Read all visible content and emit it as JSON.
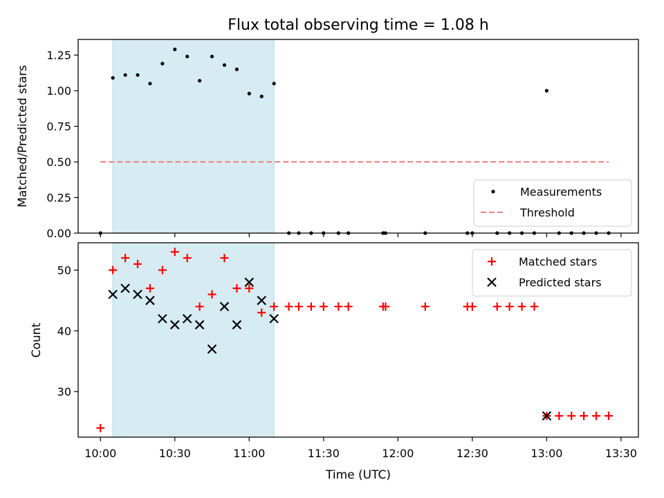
{
  "chart_data": [
    {
      "type": "scatter",
      "title": "Flux total observing time = 1.08 h",
      "xlabel": "",
      "ylabel": "Matched/Predicted stars",
      "xlim": [
        "09:51",
        "13:37"
      ],
      "ylim": [
        0,
        1.36
      ],
      "yticks": [
        0.0,
        0.25,
        0.5,
        0.75,
        1.0,
        1.25
      ],
      "ytick_labels": [
        "0.00",
        "0.25",
        "0.50",
        "0.75",
        "1.00",
        "1.25"
      ],
      "xticks": [
        "10:00",
        "10:30",
        "11:00",
        "11:30",
        "12:00",
        "12:30",
        "13:00",
        "13:30"
      ],
      "show_xtick_labels": false,
      "grid": false,
      "legend_position": "bottom-right",
      "shaded_region": {
        "x": [
          "10:05",
          "11:10"
        ],
        "color": "#add8e6"
      },
      "series": [
        {
          "name": "Measurements",
          "marker": "dot",
          "color": "#000000",
          "points": [
            [
              "10:00",
              0.0
            ],
            [
              "10:05",
              1.09
            ],
            [
              "10:10",
              1.11
            ],
            [
              "10:15",
              1.11
            ],
            [
              "10:20",
              1.05
            ],
            [
              "10:25",
              1.19
            ],
            [
              "10:30",
              1.29
            ],
            [
              "10:35",
              1.24
            ],
            [
              "10:40",
              1.07
            ],
            [
              "10:45",
              1.24
            ],
            [
              "10:50",
              1.18
            ],
            [
              "10:55",
              1.15
            ],
            [
              "11:00",
              0.98
            ],
            [
              "11:05",
              0.96
            ],
            [
              "11:10",
              1.05
            ],
            [
              "11:16",
              0.0
            ],
            [
              "11:20",
              0.0
            ],
            [
              "11:25",
              0.0
            ],
            [
              "11:30",
              0.0
            ],
            [
              "11:36",
              0.0
            ],
            [
              "11:40",
              0.0
            ],
            [
              "11:54",
              0.0
            ],
            [
              "11:55",
              0.0
            ],
            [
              "12:11",
              0.0
            ],
            [
              "12:28",
              0.0
            ],
            [
              "12:30",
              0.0
            ],
            [
              "12:40",
              0.0
            ],
            [
              "12:45",
              0.0
            ],
            [
              "12:50",
              0.0
            ],
            [
              "12:55",
              0.0
            ],
            [
              "13:00",
              1.0
            ],
            [
              "13:05",
              0.0
            ],
            [
              "13:10",
              0.0
            ],
            [
              "13:15",
              0.0
            ],
            [
              "13:20",
              0.0
            ],
            [
              "13:25",
              0.0
            ]
          ]
        },
        {
          "name": "Threshold",
          "marker": "dashed-line",
          "color": "#f08080",
          "points": [
            [
              "10:00",
              0.5
            ],
            [
              "13:25",
              0.5
            ]
          ]
        }
      ]
    },
    {
      "type": "scatter",
      "title": "",
      "xlabel": "Time (UTC)",
      "ylabel": "Count",
      "xlim": [
        "09:51",
        "13:37"
      ],
      "ylim": [
        22.5,
        54.5
      ],
      "yticks": [
        30,
        40,
        50
      ],
      "ytick_labels": [
        "30",
        "40",
        "50"
      ],
      "xticks": [
        "10:00",
        "10:30",
        "11:00",
        "11:30",
        "12:00",
        "12:30",
        "13:00",
        "13:30"
      ],
      "show_xtick_labels": true,
      "grid": false,
      "legend_position": "top-right",
      "shaded_region": {
        "x": [
          "10:05",
          "11:10"
        ],
        "color": "#add8e6"
      },
      "series": [
        {
          "name": "Matched stars",
          "marker": "plus",
          "color": "#ff0000",
          "points": [
            [
              "10:00",
              24
            ],
            [
              "10:05",
              50
            ],
            [
              "10:10",
              52
            ],
            [
              "10:15",
              51
            ],
            [
              "10:20",
              47
            ],
            [
              "10:25",
              50
            ],
            [
              "10:30",
              53
            ],
            [
              "10:35",
              52
            ],
            [
              "10:40",
              44
            ],
            [
              "10:45",
              46
            ],
            [
              "10:50",
              52
            ],
            [
              "10:55",
              47
            ],
            [
              "11:00",
              47
            ],
            [
              "11:05",
              43
            ],
            [
              "11:10",
              44
            ],
            [
              "11:16",
              44
            ],
            [
              "11:20",
              44
            ],
            [
              "11:25",
              44
            ],
            [
              "11:30",
              44
            ],
            [
              "11:36",
              44
            ],
            [
              "11:40",
              44
            ],
            [
              "11:54",
              44
            ],
            [
              "11:55",
              44
            ],
            [
              "12:11",
              44
            ],
            [
              "12:28",
              44
            ],
            [
              "12:30",
              44
            ],
            [
              "12:40",
              44
            ],
            [
              "12:45",
              44
            ],
            [
              "12:50",
              44
            ],
            [
              "12:55",
              44
            ],
            [
              "13:00",
              26
            ],
            [
              "13:05",
              26
            ],
            [
              "13:10",
              26
            ],
            [
              "13:15",
              26
            ],
            [
              "13:20",
              26
            ],
            [
              "13:25",
              26
            ]
          ]
        },
        {
          "name": "Predicted stars",
          "marker": "x",
          "color": "#000000",
          "points": [
            [
              "10:05",
              46
            ],
            [
              "10:10",
              47
            ],
            [
              "10:15",
              46
            ],
            [
              "10:20",
              45
            ],
            [
              "10:25",
              42
            ],
            [
              "10:30",
              41
            ],
            [
              "10:35",
              42
            ],
            [
              "10:40",
              41
            ],
            [
              "10:45",
              37
            ],
            [
              "10:50",
              44
            ],
            [
              "10:55",
              41
            ],
            [
              "11:00",
              48
            ],
            [
              "11:05",
              45
            ],
            [
              "11:10",
              42
            ],
            [
              "13:00",
              26
            ]
          ]
        }
      ]
    }
  ]
}
